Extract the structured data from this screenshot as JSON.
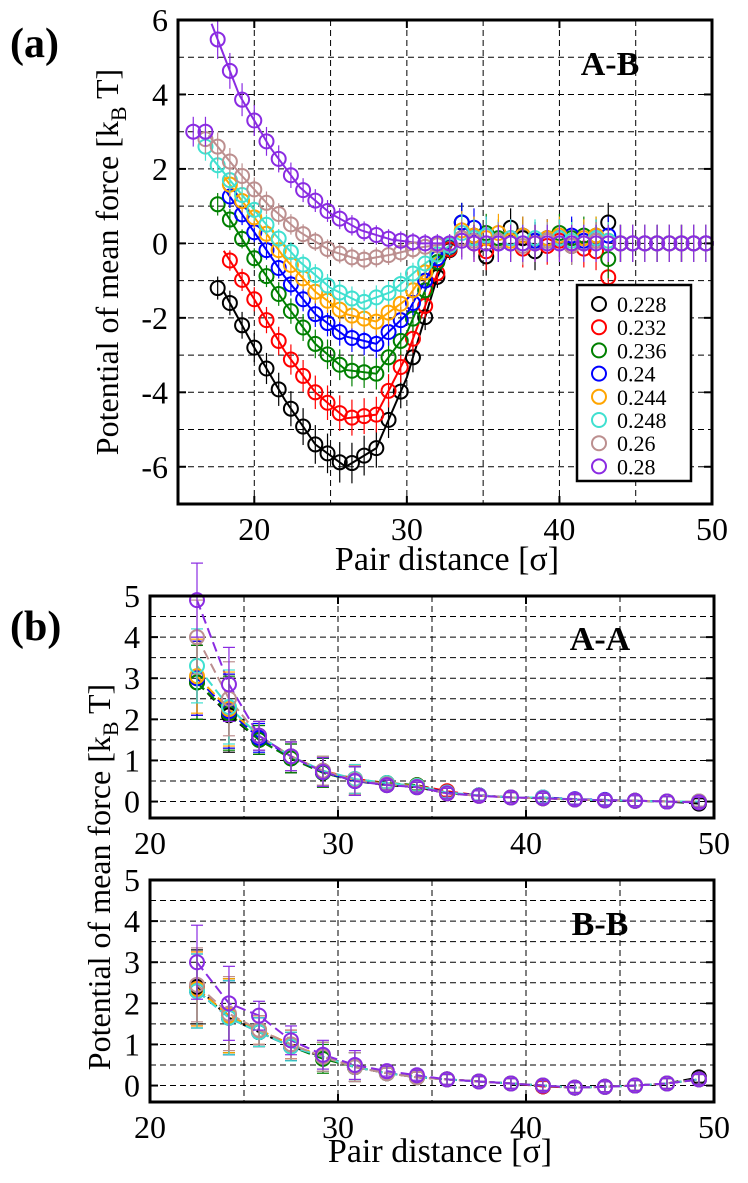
{
  "colors": {
    "0.228": "#000000",
    "0.232": "#ff0000",
    "0.236": "#008000",
    "0.24": "#0000ff",
    "0.244": "#ffa500",
    "0.248": "#40e0d0",
    "0.26": "#bc8f8f",
    "0.28": "#8a2be2"
  },
  "chart_data": [
    {
      "id": "a",
      "panel_label": "(a)",
      "type": "scatter",
      "title": "A-B",
      "xlabel": "Pair distance [σ]",
      "ylabel": "Potential of mean force [k_B T]",
      "xlim": [
        15,
        50
      ],
      "ylim": [
        -7,
        6
      ],
      "xticks": [
        20,
        30,
        40,
        50
      ],
      "yticks": [
        -6,
        -4,
        -2,
        0,
        2,
        4,
        6
      ],
      "grid": true,
      "legend": "lower-right",
      "legend_entries": [
        "0.228",
        "0.232",
        "0.236",
        "0.24",
        "0.244",
        "0.248",
        "0.26",
        "0.28"
      ],
      "x": [
        16,
        16.8,
        17.6,
        18.4,
        19.2,
        20,
        20.8,
        21.6,
        22.4,
        23.2,
        24,
        24.8,
        25.6,
        26.4,
        27.2,
        28,
        28.8,
        29.6,
        30.4,
        31.2,
        32,
        32.8,
        33.6,
        34.4,
        35.2,
        36,
        36.8,
        37.6,
        38.4,
        39.2,
        40,
        40.8,
        41.6,
        42.4,
        43.2,
        44,
        44.8,
        45.6,
        46.4,
        47.2,
        48,
        48.8,
        49.6
      ],
      "series": [
        {
          "name": "0.228",
          "start_x": 17.4,
          "min_x": 26.3,
          "min_y": -6.0,
          "start_y": -1.2,
          "tail": [
            0.8,
            0.3,
            -0.5,
            0.1,
            0.6,
            0.2,
            -0.3,
            0.1,
            0.2,
            -0.1,
            0.0,
            0.1,
            0.8,
            0.0
          ],
          "fit": [
            [
              18,
              -1.3
            ],
            [
              20,
              -2.8
            ],
            [
              22,
              -4.2
            ],
            [
              24,
              -5.4
            ],
            [
              26,
              -6.0
            ],
            [
              28,
              -5.5
            ],
            [
              30,
              -3.6
            ],
            [
              32,
              -0.9
            ],
            [
              33,
              0.0
            ]
          ]
        },
        {
          "name": "0.232",
          "start_x": 17.8,
          "min_x": 26.8,
          "min_y": -4.8,
          "start_y": -0.1,
          "tail": [
            0.2,
            0.0,
            -0.3,
            0.1,
            0.2,
            -0.2,
            0.0,
            -0.1,
            0.1,
            0.0,
            -0.2,
            -0.3,
            -1.3,
            0.0
          ],
          "fit": [
            [
              18,
              -0.2
            ],
            [
              20,
              -1.5
            ],
            [
              22,
              -2.9
            ],
            [
              24,
              -4.0
            ],
            [
              26,
              -4.7
            ],
            [
              28,
              -4.6
            ],
            [
              30,
              -3.0
            ],
            [
              32,
              -0.8
            ],
            [
              33,
              0.0
            ]
          ]
        },
        {
          "name": "0.236",
          "start_x": 17.6,
          "min_x": 27.2,
          "min_y": -3.6,
          "start_y": 1.05,
          "tail": [
            0.8,
            0.2,
            0.4,
            0.2,
            0.0,
            0.3,
            0.1,
            0.2,
            0.4,
            0.2,
            0.3,
            0.3,
            -0.6,
            0.0
          ],
          "fit": [
            [
              18,
              0.9
            ],
            [
              20,
              -0.4
            ],
            [
              22,
              -1.6
            ],
            [
              24,
              -2.7
            ],
            [
              26,
              -3.4
            ],
            [
              28,
              -3.5
            ],
            [
              30,
              -2.4
            ],
            [
              32,
              -0.5
            ],
            [
              33,
              0.0
            ]
          ]
        },
        {
          "name": "0.24",
          "start_x": 18.0,
          "min_x": 27.6,
          "min_y": -2.75,
          "start_y": 1.4,
          "tail": [
            0.8,
            0.6,
            0.3,
            0.0,
            0.2,
            0.3,
            0.1,
            0.2,
            0.2,
            0.3,
            0.1,
            0.2,
            0.3,
            0.0
          ],
          "fit": [
            [
              18,
              1.5
            ],
            [
              20,
              0.3
            ],
            [
              22,
              -0.9
            ],
            [
              24,
              -1.9
            ],
            [
              26,
              -2.5
            ],
            [
              28,
              -2.7
            ],
            [
              30,
              -1.9
            ],
            [
              32,
              -0.4
            ],
            [
              33,
              0.0
            ]
          ]
        },
        {
          "name": "0.244",
          "start_x": 18.2,
          "min_x": 27.8,
          "min_y": -2.2,
          "start_y": 1.7,
          "tail": [
            0.5,
            0.3,
            0.2,
            0.4,
            0.1,
            0.3,
            0.0,
            0.2,
            0.3,
            0.1,
            0.2,
            0.3,
            0.1,
            0.0
          ],
          "fit": [
            [
              18,
              1.8
            ],
            [
              20,
              0.7
            ],
            [
              22,
              -0.4
            ],
            [
              24,
              -1.3
            ],
            [
              26,
              -1.9
            ],
            [
              28,
              -2.1
            ],
            [
              30,
              -1.5
            ],
            [
              32,
              -0.3
            ],
            [
              33,
              0.0
            ]
          ]
        },
        {
          "name": "0.248",
          "start_x": 16.6,
          "min_x": 27.4,
          "min_y": -1.6,
          "start_y": 2.6,
          "tail": [
            0.4,
            0.2,
            0.3,
            0.1,
            0.2,
            0.0,
            0.2,
            0.1,
            0.2,
            0.1,
            0.0,
            0.2,
            0.1,
            0.0
          ],
          "fit": [
            [
              17,
              2.4
            ],
            [
              19,
              1.4
            ],
            [
              21,
              0.4
            ],
            [
              23,
              -0.5
            ],
            [
              25,
              -1.2
            ],
            [
              27,
              -1.6
            ],
            [
              29,
              -1.3
            ],
            [
              31,
              -0.6
            ],
            [
              33,
              0.0
            ]
          ]
        },
        {
          "name": "0.26",
          "start_x": 16.2,
          "min_x": 26.6,
          "min_y": -0.45,
          "start_y": 2.8,
          "tail": [
            0.2,
            0.1,
            0.0,
            0.1,
            0.0,
            -0.1,
            0.0,
            0.1,
            0.0,
            -0.1,
            0.0,
            0.1,
            0.0,
            0.0
          ],
          "fit": [
            [
              17,
              2.9
            ],
            [
              19,
              1.9
            ],
            [
              21,
              1.0
            ],
            [
              23,
              0.3
            ],
            [
              25,
              -0.2
            ],
            [
              27,
              -0.45
            ],
            [
              29,
              -0.3
            ],
            [
              31,
              -0.1
            ],
            [
              33,
              0.0
            ]
          ]
        },
        {
          "name": "0.28",
          "start_x": 16.0,
          "min_x": 30.0,
          "min_y": 0.0,
          "start_y": 3.0,
          "tail": [
            0.1,
            0.0,
            0.0,
            0.0,
            0.0,
            0.0,
            0.0,
            0.0,
            0.0,
            0.0,
            0.0,
            0.0,
            0.0,
            0.0
          ],
          "fit": [
            [
              17.2,
              5.9
            ],
            [
              19,
              4.0
            ],
            [
              21,
              2.6
            ],
            [
              23,
              1.5
            ],
            [
              25,
              0.8
            ],
            [
              27,
              0.35
            ],
            [
              29,
              0.1
            ],
            [
              31,
              0.0
            ],
            [
              33,
              0.0
            ]
          ]
        }
      ]
    },
    {
      "id": "b1",
      "panel_label": "(b)",
      "type": "line",
      "title": "A-A",
      "xlabel": "",
      "ylabel": "Potential of mean force [k_B T]",
      "xlim": [
        20,
        50
      ],
      "ylim": [
        -0.4,
        5
      ],
      "xticks": [
        20,
        30,
        40,
        50
      ],
      "yticks": [
        0,
        1,
        2,
        3,
        4,
        5
      ],
      "grid": true,
      "x": [
        22.5,
        24.2,
        25.8,
        27.5,
        29.2,
        30.9,
        32.6,
        34.2,
        35.8,
        37.5,
        39.2,
        40.9,
        42.6,
        44.2,
        45.8,
        47.5,
        49.2
      ],
      "series": [
        {
          "name": "0.228",
          "values": [
            2.9,
            2.1,
            1.5,
            1.05,
            0.7,
            0.5,
            0.4,
            0.35,
            0.2,
            0.15,
            0.1,
            0.08,
            0.05,
            0.03,
            0.02,
            0.0,
            -0.05
          ]
        },
        {
          "name": "0.232",
          "values": [
            3.0,
            2.2,
            1.6,
            1.1,
            0.75,
            0.55,
            0.45,
            0.4,
            0.25,
            0.15,
            0.1,
            0.1,
            0.05,
            0.03,
            0.02,
            0.0,
            0.0
          ]
        },
        {
          "name": "0.236",
          "values": [
            2.9,
            2.15,
            1.5,
            1.05,
            0.7,
            0.5,
            0.45,
            0.4,
            0.2,
            0.15,
            0.1,
            0.08,
            0.05,
            0.03,
            0.02,
            0.0,
            0.0
          ]
        },
        {
          "name": "0.24",
          "values": [
            3.0,
            2.2,
            1.55,
            1.1,
            0.72,
            0.5,
            0.42,
            0.38,
            0.22,
            0.15,
            0.1,
            0.1,
            0.06,
            0.04,
            0.02,
            0.0,
            0.0
          ]
        },
        {
          "name": "0.244",
          "values": [
            3.05,
            2.25,
            1.6,
            1.1,
            0.75,
            0.52,
            0.42,
            0.38,
            0.2,
            0.14,
            0.1,
            0.08,
            0.05,
            0.03,
            0.02,
            0.0,
            0.0
          ]
        },
        {
          "name": "0.248",
          "values": [
            3.3,
            2.3,
            1.6,
            1.1,
            0.75,
            0.55,
            0.45,
            0.38,
            0.22,
            0.15,
            0.1,
            0.1,
            0.05,
            0.03,
            0.02,
            0.0,
            0.0
          ]
        },
        {
          "name": "0.26",
          "values": [
            4.0,
            2.5,
            1.6,
            1.1,
            0.75,
            0.52,
            0.42,
            0.36,
            0.2,
            0.14,
            0.1,
            0.08,
            0.05,
            0.03,
            0.02,
            0.0,
            0.0
          ]
        },
        {
          "name": "0.28",
          "values": [
            4.9,
            2.85,
            1.6,
            1.1,
            0.72,
            0.5,
            0.4,
            0.35,
            0.2,
            0.14,
            0.1,
            0.08,
            0.05,
            0.03,
            0.02,
            0.0,
            -0.02
          ]
        }
      ]
    },
    {
      "id": "b2",
      "panel_label": "",
      "type": "line",
      "title": "B-B",
      "xlabel": "Pair distance [σ]",
      "ylabel": "Potential of mean force [k_B T]",
      "xlim": [
        20,
        50
      ],
      "ylim": [
        -0.4,
        5
      ],
      "xticks": [
        20,
        30,
        40,
        50
      ],
      "yticks": [
        0,
        1,
        2,
        3,
        4,
        5
      ],
      "grid": true,
      "x": [
        22.5,
        24.2,
        25.8,
        27.5,
        29.2,
        30.9,
        32.6,
        34.2,
        35.8,
        37.5,
        39.2,
        40.9,
        42.6,
        44.2,
        45.8,
        47.5,
        49.2
      ],
      "series": [
        {
          "name": "0.228",
          "values": [
            2.4,
            1.65,
            1.3,
            0.95,
            0.7,
            0.45,
            0.3,
            0.2,
            0.15,
            0.1,
            0.05,
            -0.02,
            -0.05,
            -0.03,
            0.0,
            0.05,
            0.2
          ]
        },
        {
          "name": "0.232",
          "values": [
            2.35,
            1.7,
            1.35,
            1.0,
            0.7,
            0.45,
            0.3,
            0.2,
            0.15,
            0.1,
            0.05,
            -0.02,
            -0.05,
            -0.03,
            0.0,
            0.05,
            0.15
          ]
        },
        {
          "name": "0.236",
          "values": [
            2.3,
            1.7,
            1.3,
            0.95,
            0.65,
            0.45,
            0.3,
            0.2,
            0.15,
            0.1,
            0.05,
            0.0,
            -0.05,
            -0.03,
            0.0,
            0.05,
            0.15
          ]
        },
        {
          "name": "0.24",
          "values": [
            2.3,
            1.65,
            1.3,
            0.95,
            0.7,
            0.45,
            0.3,
            0.22,
            0.15,
            0.1,
            0.05,
            0.0,
            -0.05,
            -0.03,
            0.0,
            0.05,
            0.15
          ]
        },
        {
          "name": "0.244",
          "values": [
            2.35,
            1.7,
            1.35,
            1.0,
            0.7,
            0.45,
            0.3,
            0.2,
            0.15,
            0.1,
            0.05,
            0.0,
            -0.05,
            -0.03,
            0.0,
            0.05,
            0.15
          ]
        },
        {
          "name": "0.248",
          "values": [
            2.3,
            1.65,
            1.3,
            0.95,
            0.7,
            0.45,
            0.3,
            0.2,
            0.15,
            0.1,
            0.05,
            0.0,
            -0.05,
            -0.03,
            0.0,
            0.05,
            0.15
          ]
        },
        {
          "name": "0.26",
          "values": [
            2.45,
            1.75,
            1.35,
            1.0,
            0.7,
            0.45,
            0.3,
            0.2,
            0.15,
            0.1,
            0.05,
            0.0,
            -0.05,
            -0.03,
            0.0,
            0.05,
            0.15
          ]
        },
        {
          "name": "0.28",
          "values": [
            3.0,
            2.0,
            1.7,
            1.1,
            0.75,
            0.5,
            0.35,
            0.25,
            0.15,
            0.1,
            0.05,
            0.0,
            -0.05,
            -0.03,
            0.0,
            0.05,
            0.15
          ]
        }
      ]
    }
  ]
}
